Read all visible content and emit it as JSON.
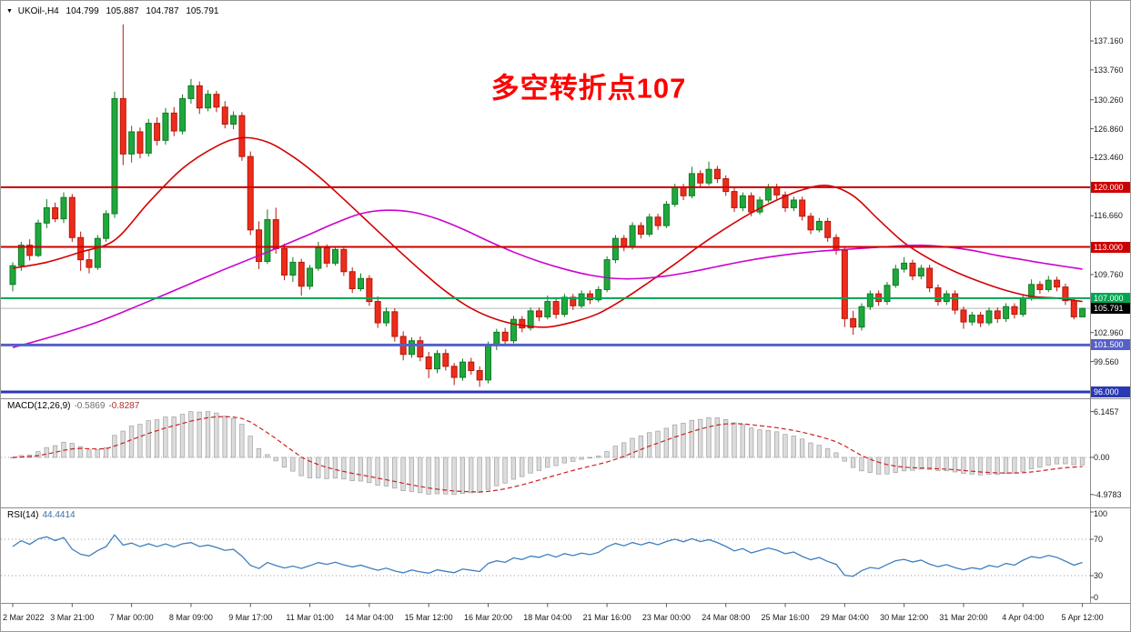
{
  "window": {
    "title_icon": "▼",
    "symbol": "UKOil-,H4",
    "open": "104.799",
    "high": "105.887",
    "low": "104.787",
    "close": "105.791"
  },
  "annotation": {
    "text": "多空转折点107",
    "color": "#FF0000"
  },
  "chart_data": {
    "type": "candlestick",
    "symbol": "UKOil-",
    "timeframe": "H4",
    "ylim": [
      95.25,
      141.0
    ],
    "candles": [
      [
        108.6,
        111.2,
        107.8,
        110.8
      ],
      [
        110.8,
        113.6,
        110.2,
        113.2
      ],
      [
        113.2,
        113.9,
        111.4,
        112.0
      ],
      [
        112.0,
        116.2,
        111.8,
        115.8
      ],
      [
        115.8,
        118.6,
        115.2,
        117.6
      ],
      [
        117.6,
        118.2,
        115.9,
        116.3
      ],
      [
        116.3,
        119.4,
        115.8,
        118.8
      ],
      [
        118.8,
        119.2,
        113.6,
        114.1
      ],
      [
        114.1,
        114.8,
        110.2,
        111.5
      ],
      [
        111.5,
        112.6,
        109.9,
        110.6
      ],
      [
        110.6,
        114.4,
        110.3,
        114.0
      ],
      [
        114.0,
        117.3,
        113.6,
        116.9
      ],
      [
        116.9,
        131.2,
        116.4,
        130.4
      ],
      [
        130.4,
        139.1,
        122.6,
        123.9
      ],
      [
        123.9,
        127.2,
        122.9,
        126.5
      ],
      [
        126.5,
        127.0,
        123.4,
        124.0
      ],
      [
        124.0,
        128.0,
        123.6,
        127.5
      ],
      [
        127.5,
        128.2,
        124.9,
        125.5
      ],
      [
        125.5,
        129.3,
        125.0,
        128.7
      ],
      [
        128.7,
        129.4,
        126.0,
        126.6
      ],
      [
        126.6,
        130.9,
        126.2,
        130.4
      ],
      [
        130.4,
        132.7,
        129.8,
        131.9
      ],
      [
        131.9,
        132.4,
        128.6,
        129.3
      ],
      [
        129.3,
        131.4,
        128.9,
        130.9
      ],
      [
        130.9,
        131.3,
        128.8,
        129.4
      ],
      [
        129.4,
        130.1,
        126.9,
        127.4
      ],
      [
        127.4,
        128.9,
        126.8,
        128.4
      ],
      [
        128.4,
        128.8,
        123.1,
        123.6
      ],
      [
        123.6,
        124.2,
        114.4,
        115.0
      ],
      [
        115.0,
        116.0,
        110.4,
        111.3
      ],
      [
        111.3,
        117.4,
        111.0,
        116.2
      ],
      [
        116.2,
        117.6,
        112.2,
        112.8
      ],
      [
        112.8,
        113.4,
        109.1,
        109.7
      ],
      [
        109.7,
        111.8,
        108.9,
        111.2
      ],
      [
        111.2,
        111.6,
        107.3,
        108.4
      ],
      [
        108.4,
        110.9,
        108.0,
        110.5
      ],
      [
        110.5,
        113.6,
        110.2,
        112.9
      ],
      [
        112.9,
        113.3,
        110.6,
        111.1
      ],
      [
        111.1,
        113.1,
        110.8,
        112.7
      ],
      [
        112.7,
        113.0,
        109.6,
        110.1
      ],
      [
        110.1,
        110.6,
        107.6,
        108.1
      ],
      [
        108.1,
        109.9,
        107.8,
        109.3
      ],
      [
        109.3,
        109.7,
        106.1,
        106.6
      ],
      [
        106.6,
        107.2,
        103.5,
        104.1
      ],
      [
        104.1,
        105.9,
        103.7,
        105.4
      ],
      [
        105.4,
        105.8,
        101.9,
        102.5
      ],
      [
        102.5,
        103.1,
        99.7,
        100.4
      ],
      [
        100.4,
        102.4,
        100.0,
        102.0
      ],
      [
        102.0,
        102.5,
        99.6,
        100.1
      ],
      [
        100.1,
        100.7,
        97.6,
        98.7
      ],
      [
        98.7,
        100.9,
        98.2,
        100.5
      ],
      [
        100.5,
        101.0,
        98.5,
        99.0
      ],
      [
        99.0,
        99.4,
        96.8,
        97.7
      ],
      [
        97.7,
        99.9,
        97.3,
        99.5
      ],
      [
        99.5,
        100.0,
        98.0,
        98.5
      ],
      [
        98.5,
        99.0,
        96.6,
        97.4
      ],
      [
        97.4,
        101.9,
        97.0,
        101.5
      ],
      [
        101.5,
        103.4,
        100.9,
        103.0
      ],
      [
        103.0,
        103.5,
        101.5,
        102.0
      ],
      [
        102.0,
        104.9,
        101.7,
        104.5
      ],
      [
        104.5,
        104.9,
        103.0,
        103.5
      ],
      [
        103.5,
        105.9,
        103.2,
        105.5
      ],
      [
        105.5,
        105.9,
        104.3,
        104.8
      ],
      [
        104.8,
        107.3,
        104.5,
        106.6
      ],
      [
        106.6,
        107.0,
        104.6,
        105.1
      ],
      [
        105.1,
        107.5,
        104.8,
        107.1
      ],
      [
        107.1,
        107.5,
        105.6,
        106.1
      ],
      [
        106.1,
        107.9,
        105.8,
        107.5
      ],
      [
        107.5,
        107.9,
        106.3,
        106.8
      ],
      [
        106.8,
        108.4,
        106.5,
        108.0
      ],
      [
        108.0,
        111.9,
        107.7,
        111.5
      ],
      [
        111.5,
        114.4,
        111.1,
        114.0
      ],
      [
        114.0,
        114.4,
        112.5,
        113.0
      ],
      [
        113.0,
        115.9,
        112.7,
        115.5
      ],
      [
        115.5,
        115.9,
        114.0,
        114.5
      ],
      [
        114.5,
        116.9,
        114.2,
        116.5
      ],
      [
        116.5,
        116.9,
        115.0,
        115.5
      ],
      [
        115.5,
        118.4,
        115.2,
        118.0
      ],
      [
        118.0,
        120.4,
        117.7,
        120.0
      ],
      [
        120.0,
        120.4,
        118.5,
        119.0
      ],
      [
        119.0,
        122.4,
        118.7,
        121.6
      ],
      [
        121.6,
        122.0,
        120.0,
        120.5
      ],
      [
        120.5,
        123.0,
        120.2,
        122.1
      ],
      [
        122.1,
        122.5,
        120.5,
        121.0
      ],
      [
        121.0,
        121.4,
        119.0,
        119.5
      ],
      [
        119.5,
        120.0,
        117.1,
        117.6
      ],
      [
        117.6,
        119.4,
        117.2,
        119.0
      ],
      [
        119.0,
        119.4,
        116.6,
        117.1
      ],
      [
        117.1,
        118.9,
        116.8,
        118.5
      ],
      [
        118.5,
        120.4,
        118.2,
        120.0
      ],
      [
        120.0,
        120.4,
        118.6,
        119.1
      ],
      [
        119.1,
        119.5,
        117.1,
        117.6
      ],
      [
        117.6,
        118.9,
        117.2,
        118.5
      ],
      [
        118.5,
        118.9,
        116.1,
        116.6
      ],
      [
        116.6,
        117.0,
        114.5,
        115.0
      ],
      [
        115.0,
        116.4,
        114.7,
        116.0
      ],
      [
        116.0,
        116.4,
        113.6,
        114.1
      ],
      [
        114.1,
        114.5,
        112.1,
        112.6
      ],
      [
        112.6,
        113.0,
        103.6,
        104.6
      ],
      [
        104.6,
        105.5,
        102.7,
        103.6
      ],
      [
        103.6,
        106.4,
        103.2,
        106.0
      ],
      [
        106.0,
        107.9,
        105.6,
        107.5
      ],
      [
        107.5,
        107.9,
        106.1,
        106.6
      ],
      [
        106.6,
        108.9,
        106.2,
        108.5
      ],
      [
        108.5,
        110.9,
        108.2,
        110.4
      ],
      [
        110.4,
        111.8,
        110.0,
        111.1
      ],
      [
        111.1,
        111.5,
        109.1,
        109.6
      ],
      [
        109.6,
        110.9,
        109.2,
        110.5
      ],
      [
        110.5,
        110.9,
        107.7,
        108.2
      ],
      [
        108.2,
        108.6,
        106.1,
        106.6
      ],
      [
        106.6,
        107.9,
        106.2,
        107.5
      ],
      [
        107.5,
        107.9,
        105.1,
        105.6
      ],
      [
        105.6,
        106.0,
        103.4,
        104.2
      ],
      [
        104.2,
        105.4,
        103.8,
        105.0
      ],
      [
        105.0,
        105.4,
        103.6,
        104.1
      ],
      [
        104.1,
        105.9,
        103.8,
        105.5
      ],
      [
        105.5,
        105.9,
        104.1,
        104.6
      ],
      [
        104.6,
        106.4,
        104.2,
        106.0
      ],
      [
        106.0,
        106.4,
        104.6,
        105.1
      ],
      [
        105.1,
        107.4,
        104.8,
        107.0
      ],
      [
        107.0,
        109.2,
        106.7,
        108.6
      ],
      [
        108.6,
        109.0,
        107.5,
        108.0
      ],
      [
        108.0,
        109.6,
        107.7,
        109.1
      ],
      [
        109.1,
        109.5,
        107.8,
        108.3
      ],
      [
        108.3,
        108.7,
        106.2,
        106.7
      ],
      [
        106.7,
        107.0,
        104.5,
        104.8
      ],
      [
        104.799,
        105.887,
        104.787,
        105.791
      ]
    ],
    "time_labels": [
      {
        "i": 0,
        "label": "2 Mar 2022"
      },
      {
        "i": 7,
        "label": "3 Mar 21:00"
      },
      {
        "i": 14,
        "label": "7 Mar 00:00"
      },
      {
        "i": 21,
        "label": "8 Mar 09:00"
      },
      {
        "i": 28,
        "label": "9 Mar 17:00"
      },
      {
        "i": 35,
        "label": "11 Mar 01:00"
      },
      {
        "i": 42,
        "label": "14 Mar 04:00"
      },
      {
        "i": 49,
        "label": "15 Mar 12:00"
      },
      {
        "i": 56,
        "label": "16 Mar 20:00"
      },
      {
        "i": 63,
        "label": "18 Mar 04:00"
      },
      {
        "i": 70,
        "label": "21 Mar 16:00"
      },
      {
        "i": 77,
        "label": "23 Mar 00:00"
      },
      {
        "i": 84,
        "label": "24 Mar 08:00"
      },
      {
        "i": 91,
        "label": "25 Mar 16:00"
      },
      {
        "i": 98,
        "label": "29 Mar 04:00"
      },
      {
        "i": 105,
        "label": "30 Mar 12:00"
      },
      {
        "i": 112,
        "label": "31 Mar 20:00"
      },
      {
        "i": 119,
        "label": "4 Apr 04:00"
      },
      {
        "i": 126,
        "label": "5 Apr 12:00"
      }
    ],
    "y_axis_ticks": [
      "137.160",
      "133.760",
      "130.260",
      "126.860",
      "123.460",
      "116.660",
      "109.760",
      "102.960",
      "99.560"
    ],
    "hlines": [
      {
        "price": 120.0,
        "label": "120.000",
        "color": "#CC0000",
        "width": 2
      },
      {
        "price": 113.0,
        "label": "113.000",
        "color": "#CC0000",
        "width": 2
      },
      {
        "price": 107.0,
        "label": "107.000",
        "color": "#00A651",
        "width": 2
      },
      {
        "price": 101.5,
        "label": "101.500",
        "color": "#5560C8",
        "width": 3
      },
      {
        "price": 96.0,
        "label": "96.000",
        "color": "#2B38B5",
        "width": 3
      }
    ],
    "current_price": {
      "value": 105.791,
      "label": "105.791",
      "chip_color": "#000000",
      "line_color": "#B8B8B8"
    },
    "moving_averages": [
      {
        "name": "ma-fast",
        "color": "#D40000",
        "points": [
          [
            0,
            110.5
          ],
          [
            4,
            111.2
          ],
          [
            8,
            112.4
          ],
          [
            12,
            113.8
          ],
          [
            16,
            118.2
          ],
          [
            20,
            122.2
          ],
          [
            24,
            124.8
          ],
          [
            27,
            125.8
          ],
          [
            30,
            125.3
          ],
          [
            33,
            123.6
          ],
          [
            36,
            121.3
          ],
          [
            39,
            118.6
          ],
          [
            42,
            115.8
          ],
          [
            45,
            113.0
          ],
          [
            48,
            110.3
          ],
          [
            51,
            107.8
          ],
          [
            54,
            105.8
          ],
          [
            57,
            104.5
          ],
          [
            60,
            103.8
          ],
          [
            63,
            103.6
          ],
          [
            66,
            104.2
          ],
          [
            69,
            105.2
          ],
          [
            72,
            106.9
          ],
          [
            75,
            108.9
          ],
          [
            78,
            111.0
          ],
          [
            81,
            113.2
          ],
          [
            84,
            115.2
          ],
          [
            87,
            117.0
          ],
          [
            90,
            118.5
          ],
          [
            93,
            119.7
          ],
          [
            96,
            120.2
          ],
          [
            99,
            119.0
          ],
          [
            102,
            116.2
          ],
          [
            105,
            113.5
          ],
          [
            108,
            111.6
          ],
          [
            111,
            110.1
          ],
          [
            114,
            108.9
          ],
          [
            117,
            107.9
          ],
          [
            120,
            107.2
          ],
          [
            123,
            107.0
          ],
          [
            126,
            106.6
          ]
        ]
      },
      {
        "name": "ma-slow",
        "color": "#CC00CC",
        "points": [
          [
            0,
            101.2
          ],
          [
            5,
            102.6
          ],
          [
            10,
            104.2
          ],
          [
            15,
            106.2
          ],
          [
            20,
            108.3
          ],
          [
            25,
            110.4
          ],
          [
            30,
            112.4
          ],
          [
            35,
            114.5
          ],
          [
            38,
            115.8
          ],
          [
            41,
            116.9
          ],
          [
            44,
            117.3
          ],
          [
            47,
            117.1
          ],
          [
            50,
            116.3
          ],
          [
            53,
            115.1
          ],
          [
            56,
            113.7
          ],
          [
            59,
            112.4
          ],
          [
            62,
            111.3
          ],
          [
            65,
            110.4
          ],
          [
            68,
            109.7
          ],
          [
            71,
            109.3
          ],
          [
            74,
            109.3
          ],
          [
            77,
            109.6
          ],
          [
            80,
            110.1
          ],
          [
            83,
            110.7
          ],
          [
            86,
            111.3
          ],
          [
            89,
            111.8
          ],
          [
            92,
            112.2
          ],
          [
            95,
            112.5
          ],
          [
            98,
            112.7
          ],
          [
            101,
            112.9
          ],
          [
            104,
            113.1
          ],
          [
            107,
            113.2
          ],
          [
            110,
            113.0
          ],
          [
            113,
            112.6
          ],
          [
            116,
            112.0
          ],
          [
            119,
            111.5
          ],
          [
            122,
            111.0
          ],
          [
            126,
            110.4
          ]
        ]
      }
    ],
    "colors": {
      "up": "#1FA83C",
      "up_border": "#117A26",
      "down": "#EE2C1B",
      "down_border": "#B2180B"
    },
    "macd": {
      "name": "MACD(12,26,9)",
      "params": [
        12,
        26,
        9
      ],
      "value": "-0.5869",
      "signal_value": "-0.8287",
      "ticks": [
        "6.1457",
        "0.00",
        "-4.9783"
      ],
      "scale_max": 6.1457,
      "scale_min": -4.9783,
      "hist_fill": "#DCDCDC",
      "hist_border": "#A0A0A0",
      "signal_color": "#CC2222"
    },
    "rsi": {
      "name": "RSI(14)",
      "period": 14,
      "value": "44.4414",
      "ticks": [
        100,
        70,
        30,
        0
      ],
      "levels": [
        70,
        30
      ],
      "color": "#3E7FBF"
    }
  }
}
